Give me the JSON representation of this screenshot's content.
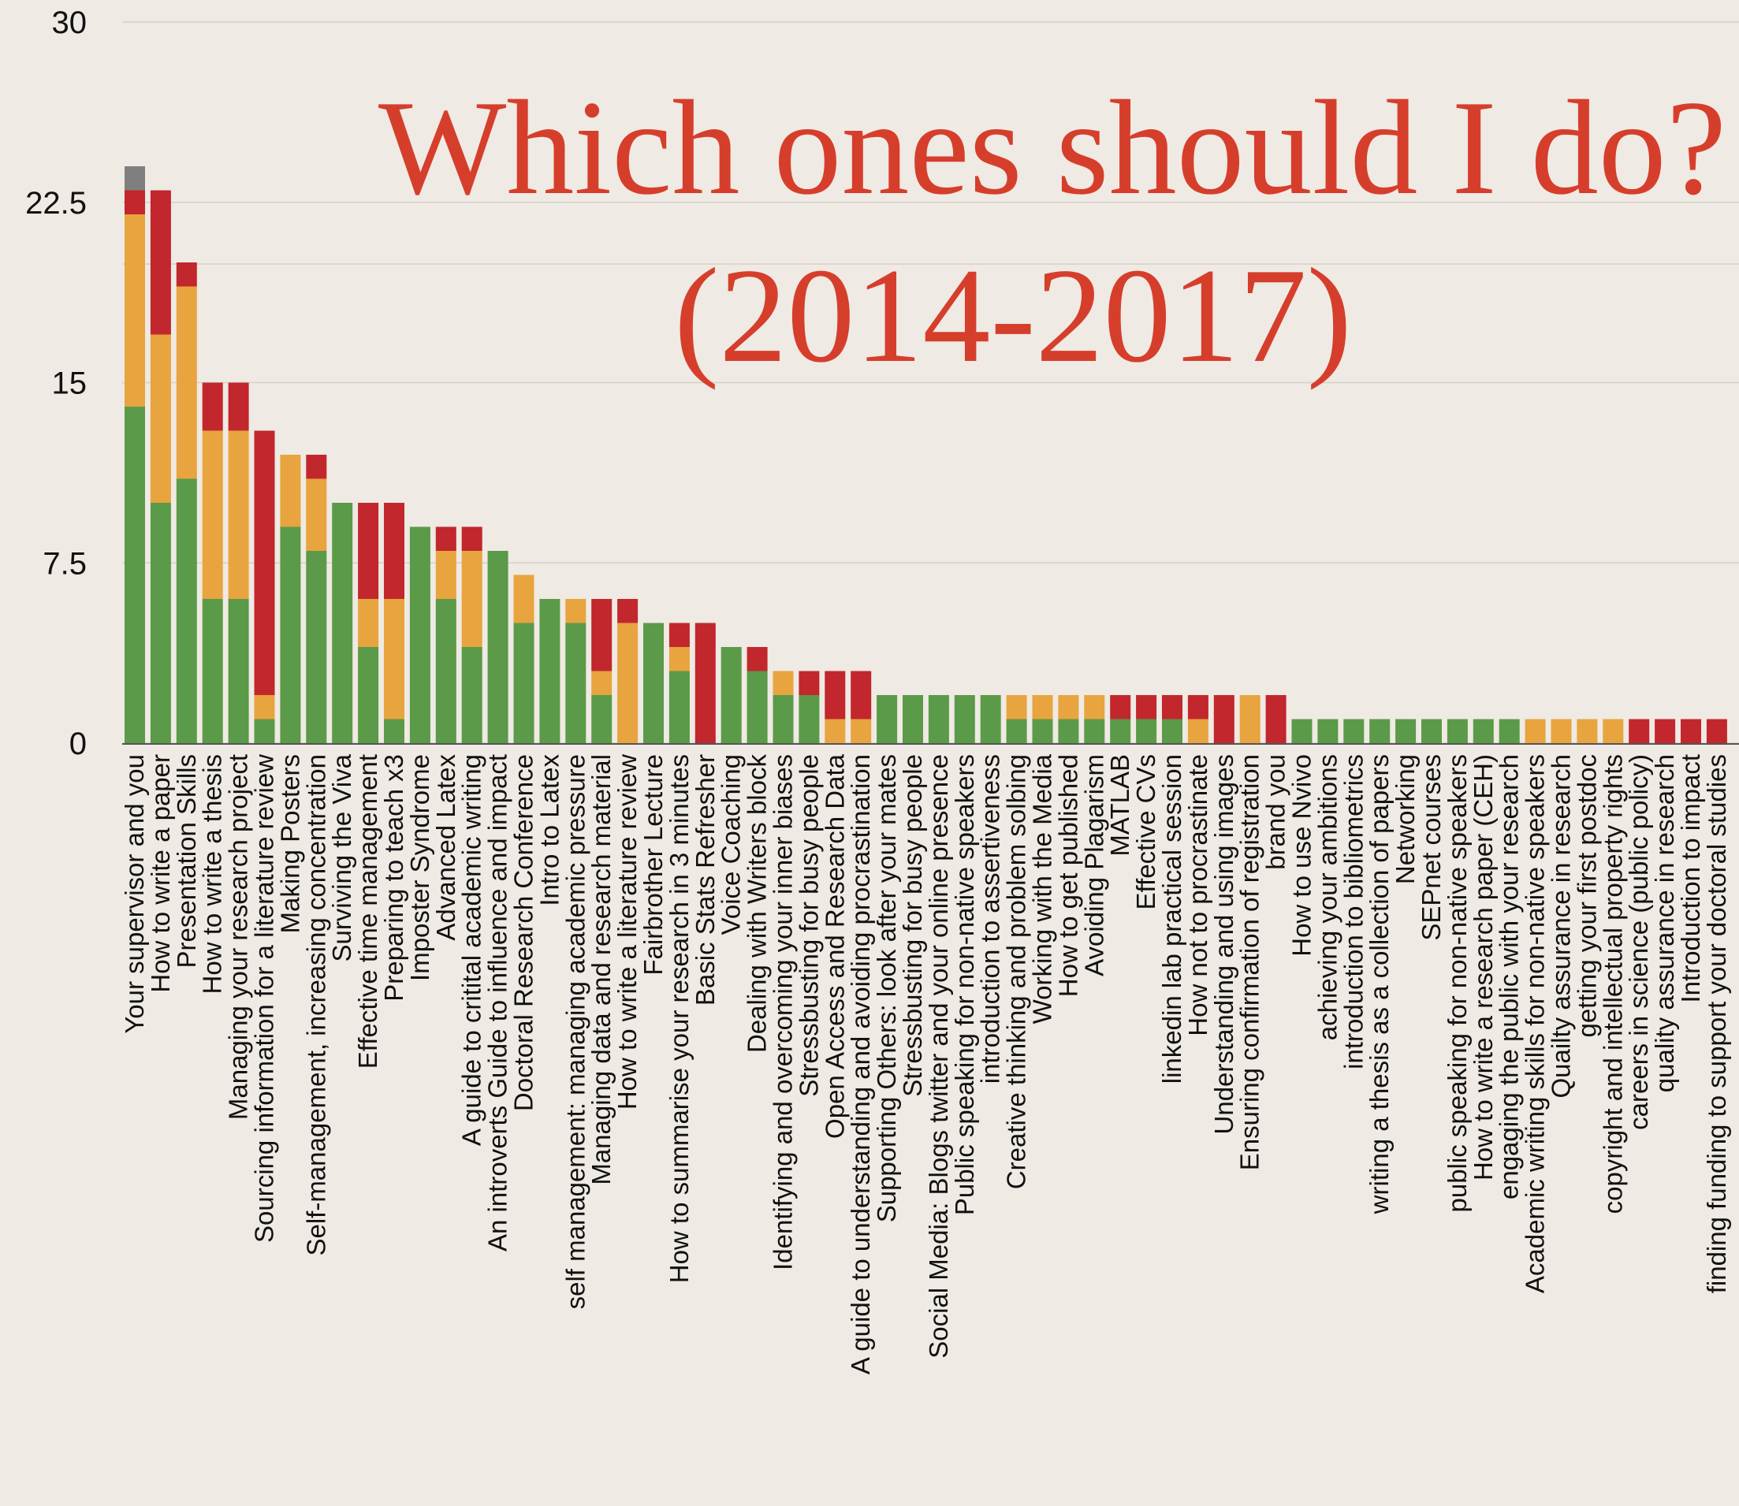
{
  "chart_data": {
    "type": "bar",
    "stacked": true,
    "title_line1": "Which ones should I do?",
    "title_line2": "(2014-2017)",
    "ylim": [
      0,
      30
    ],
    "yticks": [
      "0",
      "7.5",
      "15",
      "22.5",
      "30"
    ],
    "grid": true,
    "legend": "none",
    "colors": {
      "green": "#5b9a48",
      "orange": "#e8a43e",
      "red": "#c1272d",
      "gray": "#7f7f7f",
      "title": "#d63e2c"
    },
    "categories": [
      "Your supervisor and you",
      "How to write a paper",
      "Presentation Skills",
      "How to write a thesis",
      "Managing your research project",
      "Sourcing information for a literature review",
      "Making Posters",
      "Self-management, increasing concentration",
      "Surviving the Viva",
      "Effective time management",
      "Preparing to teach x3",
      "Imposter Syndrome",
      "Advanced Latex",
      "A guide to critital academic writing",
      "An introverts Guide to influence and impact",
      "Doctoral Research Conference",
      "Intro to Latex",
      "self management: managing academic pressure",
      "Managing data and research material",
      "How to write a literature review",
      "Fairbrother Lecture",
      "How to summarise your research in 3 minutes",
      "Basic Stats Refresher",
      "Voice Coaching",
      "Dealing with Writers block",
      "Identifying and overcoming your inner biases",
      "Stressbusting for busy people",
      "Open Access and Research Data",
      "A guide to understanding and avoiding procrastination",
      "Supporting Others: look after your mates",
      "Stressbusting for busy people",
      "Social Media: Blogs twitter and your online presence",
      "Public speaking for non-native speakers",
      "introduction to assertiveness",
      "Creative thinking and problem solbing",
      "Working with the Media",
      "How to get published",
      "Avoiding Plagarism",
      "MATLAB",
      "Effective CVs",
      "linkedin lab practical session",
      "How not to procrastinate",
      "Understanding and using images",
      "Ensuring confirmation of registration",
      "brand you",
      "How to use Nvivo",
      "achieving your ambitions",
      "introduction to bibliometrics",
      "writing a thesis as a collection of papers",
      "Networking",
      "SEPnet courses",
      "public speaking for non-native speakers",
      "How to write a research paper (CEH)",
      "engaging the public with your research",
      "Academic writing skills for non-native speakers",
      "Quailty assurance in research",
      "getting your first postdoc",
      "copyright and intellectual property rights",
      "careers in science (public policy)",
      "quality assurance in research",
      "Introduction to impact",
      "finding funding to support your doctoral studies"
    ],
    "series": [
      {
        "color": "green",
        "values": [
          14,
          10,
          11,
          6,
          6,
          1,
          9,
          8,
          10,
          4,
          1,
          9,
          6,
          4,
          8,
          5,
          6,
          5,
          2,
          0,
          5,
          3,
          0,
          4,
          3,
          2,
          2,
          0,
          0,
          2,
          2,
          2,
          2,
          2,
          1,
          1,
          1,
          1,
          1,
          1,
          1,
          0,
          0,
          0,
          0,
          1,
          1,
          1,
          1,
          1,
          1,
          1,
          1,
          1,
          0,
          0,
          0,
          0,
          0,
          0,
          0,
          0
        ]
      },
      {
        "color": "orange",
        "values": [
          8,
          7,
          8,
          7,
          7,
          1,
          3,
          3,
          0,
          2,
          5,
          0,
          2,
          4,
          0,
          2,
          0,
          1,
          1,
          5,
          0,
          1,
          0,
          0,
          0,
          1,
          0,
          1,
          1,
          0,
          0,
          0,
          0,
          0,
          1,
          1,
          1,
          1,
          0,
          0,
          0,
          1,
          0,
          2,
          0,
          0,
          0,
          0,
          0,
          0,
          0,
          0,
          0,
          0,
          1,
          1,
          1,
          1,
          0,
          0,
          0,
          0
        ]
      },
      {
        "color": "red",
        "values": [
          1,
          6,
          1,
          2,
          2,
          11,
          0,
          1,
          0,
          4,
          4,
          0,
          1,
          1,
          0,
          0,
          0,
          0,
          3,
          1,
          0,
          1,
          5,
          0,
          1,
          0,
          1,
          2,
          2,
          0,
          0,
          0,
          0,
          0,
          0,
          0,
          0,
          0,
          1,
          1,
          1,
          1,
          2,
          0,
          2,
          0,
          0,
          0,
          0,
          0,
          0,
          0,
          0,
          0,
          0,
          0,
          0,
          0,
          1,
          1,
          1,
          1
        ]
      },
      {
        "color": "gray",
        "values": [
          1,
          0,
          0,
          0,
          0,
          0,
          0,
          0,
          0,
          0,
          0,
          0,
          0,
          0,
          0,
          0,
          0,
          0,
          0,
          0,
          0,
          0,
          0,
          0,
          0,
          0,
          0,
          0,
          0,
          0,
          0,
          0,
          0,
          0,
          0,
          0,
          0,
          0,
          0,
          0,
          0,
          0,
          0,
          0,
          0,
          0,
          0,
          0,
          0,
          0,
          0,
          0,
          0,
          0,
          0,
          0,
          0,
          0,
          0,
          0,
          0,
          0
        ]
      }
    ]
  }
}
